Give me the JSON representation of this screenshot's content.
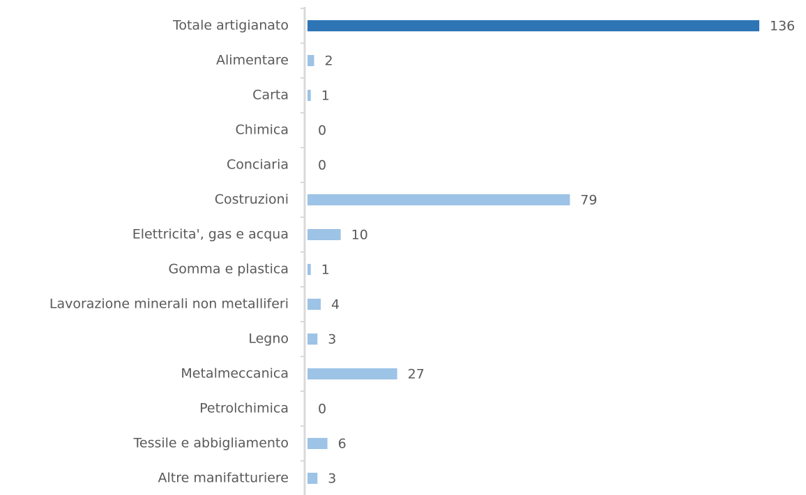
{
  "chart_data": {
    "type": "hbar",
    "categories": [
      "Totale artigianato",
      "Alimentare",
      "Carta",
      "Chimica",
      "Conciaria",
      "Costruzioni",
      "Elettricita', gas e acqua",
      "Gomma e plastica",
      "Lavorazione minerali non metalliferi",
      "Legno",
      "Metalmeccanica",
      "Petrolchimica",
      "Tessile e abbigliamento",
      "Altre manifatturiere"
    ],
    "values": [
      136,
      2,
      1,
      0,
      0,
      79,
      10,
      1,
      4,
      3,
      27,
      0,
      6,
      3
    ],
    "colors": [
      "#2e75b6",
      "#9dc3e6",
      "#9dc3e6",
      "#9dc3e6",
      "#9dc3e6",
      "#9dc3e6",
      "#9dc3e6",
      "#9dc3e6",
      "#9dc3e6",
      "#9dc3e6",
      "#9dc3e6",
      "#9dc3e6",
      "#9dc3e6",
      "#9dc3e6"
    ]
  }
}
